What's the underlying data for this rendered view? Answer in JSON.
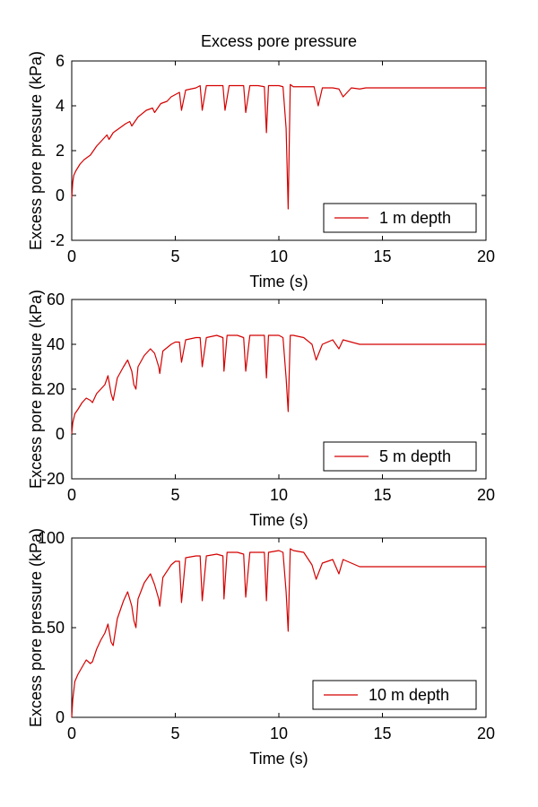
{
  "chart_data": [
    {
      "type": "line",
      "title": "Excess pore pressure",
      "xlabel": "Time (s)",
      "ylabel": "Excess pore pressure (kPa)",
      "xlim": [
        0,
        20
      ],
      "ylim": [
        -2,
        6
      ],
      "xticks": [
        "0",
        "5",
        "10",
        "15",
        "20"
      ],
      "yticks": [
        "-2",
        "0",
        "2",
        "4",
        "6"
      ],
      "grid": false,
      "legend_position": "bottom-right",
      "colors": {
        "series": "#d40000"
      },
      "series": [
        {
          "name": "1 m depth",
          "x": [
            0,
            0.05,
            0.1,
            0.2,
            0.4,
            0.6,
            0.9,
            1.2,
            1.5,
            1.7,
            1.8,
            2.0,
            2.3,
            2.6,
            2.8,
            2.9,
            3.2,
            3.6,
            3.9,
            4.0,
            4.3,
            4.6,
            4.8,
            5.0,
            5.2,
            5.3,
            5.5,
            6.0,
            6.2,
            6.3,
            6.5,
            7.0,
            7.3,
            7.4,
            7.6,
            8.0,
            8.3,
            8.4,
            8.6,
            9.0,
            9.3,
            9.4,
            9.5,
            10.0,
            10.2,
            10.35,
            10.45,
            10.55,
            10.7,
            11.2,
            11.7,
            11.9,
            12.1,
            12.6,
            12.9,
            13.1,
            13.5,
            13.9,
            14.2,
            15,
            20
          ],
          "y": [
            -0.1,
            0.6,
            0.9,
            1.1,
            1.4,
            1.6,
            1.8,
            2.2,
            2.5,
            2.7,
            2.5,
            2.8,
            3.0,
            3.2,
            3.3,
            3.1,
            3.5,
            3.8,
            3.9,
            3.7,
            4.1,
            4.2,
            4.4,
            4.5,
            4.6,
            3.8,
            4.7,
            4.8,
            4.9,
            3.8,
            4.9,
            4.9,
            4.9,
            3.8,
            4.9,
            4.9,
            4.9,
            3.7,
            4.9,
            4.9,
            4.85,
            2.8,
            4.9,
            4.9,
            4.85,
            3.0,
            -0.6,
            4.95,
            4.85,
            4.85,
            4.85,
            4.0,
            4.8,
            4.8,
            4.75,
            4.4,
            4.8,
            4.75,
            4.8,
            4.8,
            4.8
          ]
        }
      ]
    },
    {
      "type": "line",
      "title": "",
      "xlabel": "Time (s)",
      "ylabel": "Excess pore pressure (kPa)",
      "xlim": [
        0,
        20
      ],
      "ylim": [
        -20,
        60
      ],
      "xticks": [
        "0",
        "5",
        "10",
        "15",
        "20"
      ],
      "yticks": [
        "-20",
        "0",
        "20",
        "40",
        "60"
      ],
      "grid": false,
      "legend_position": "bottom-right",
      "colors": {
        "series": "#d40000"
      },
      "series": [
        {
          "name": "5 m depth",
          "x": [
            0,
            0.05,
            0.15,
            0.3,
            0.5,
            0.7,
            0.9,
            1.0,
            1.2,
            1.4,
            1.6,
            1.75,
            1.9,
            2.0,
            2.2,
            2.5,
            2.7,
            2.9,
            3.0,
            3.1,
            3.2,
            3.5,
            3.8,
            4.0,
            4.2,
            4.25,
            4.4,
            4.8,
            5.0,
            5.2,
            5.3,
            5.5,
            6.0,
            6.2,
            6.3,
            6.5,
            7.0,
            7.3,
            7.35,
            7.5,
            8.0,
            8.3,
            8.4,
            8.6,
            9.0,
            9.3,
            9.4,
            9.5,
            10.0,
            10.2,
            10.35,
            10.45,
            10.55,
            10.7,
            11.2,
            11.6,
            11.8,
            12.1,
            12.6,
            12.9,
            13.1,
            13.5,
            13.9,
            14.2,
            15,
            20
          ],
          "y": [
            0,
            5,
            9,
            11,
            14,
            16,
            15,
            14,
            18,
            20,
            22,
            26,
            18,
            15,
            25,
            30,
            33,
            28,
            22,
            20,
            30,
            35,
            38,
            36,
            30,
            27,
            37,
            40,
            41,
            41,
            32,
            42,
            43,
            43,
            30,
            43,
            44,
            43,
            28,
            44,
            44,
            43,
            28,
            44,
            44,
            44,
            25,
            44,
            44,
            43,
            25,
            10,
            44,
            44,
            43,
            40,
            33,
            40,
            42,
            38,
            42,
            41,
            40,
            40,
            40,
            40
          ]
        }
      ]
    },
    {
      "type": "line",
      "title": "",
      "xlabel": "Time (s)",
      "ylabel": "Excess pore pressure (kPa)",
      "xlim": [
        0,
        20
      ],
      "ylim": [
        0,
        100
      ],
      "xticks": [
        "0",
        "5",
        "10",
        "15",
        "20"
      ],
      "yticks": [
        "0",
        "50",
        "100"
      ],
      "grid": false,
      "legend_position": "bottom-right",
      "colors": {
        "series": "#d40000"
      },
      "series": [
        {
          "name": "10 m depth",
          "x": [
            0,
            0.05,
            0.15,
            0.3,
            0.5,
            0.7,
            0.9,
            1.0,
            1.2,
            1.4,
            1.6,
            1.75,
            1.9,
            2.0,
            2.2,
            2.5,
            2.7,
            2.9,
            3.0,
            3.1,
            3.2,
            3.5,
            3.8,
            4.0,
            4.2,
            4.25,
            4.4,
            4.8,
            5.0,
            5.2,
            5.3,
            5.5,
            6.0,
            6.2,
            6.3,
            6.5,
            7.0,
            7.3,
            7.35,
            7.5,
            8.0,
            8.3,
            8.4,
            8.6,
            9.0,
            9.3,
            9.4,
            9.5,
            10.0,
            10.2,
            10.35,
            10.45,
            10.55,
            10.7,
            11.2,
            11.6,
            11.8,
            12.1,
            12.6,
            12.9,
            13.1,
            13.5,
            13.9,
            14.2,
            15,
            20
          ],
          "y": [
            0,
            10,
            20,
            24,
            28,
            32,
            30,
            31,
            38,
            43,
            47,
            52,
            42,
            40,
            55,
            65,
            70,
            62,
            54,
            50,
            66,
            75,
            80,
            74,
            66,
            62,
            78,
            85,
            87,
            87,
            64,
            89,
            90,
            90,
            65,
            90,
            91,
            90,
            66,
            92,
            92,
            91,
            67,
            92,
            92,
            92,
            65,
            92,
            93,
            92,
            70,
            48,
            94,
            93,
            92,
            85,
            77,
            86,
            88,
            80,
            88,
            86,
            84,
            84,
            84,
            84
          ]
        }
      ]
    }
  ]
}
